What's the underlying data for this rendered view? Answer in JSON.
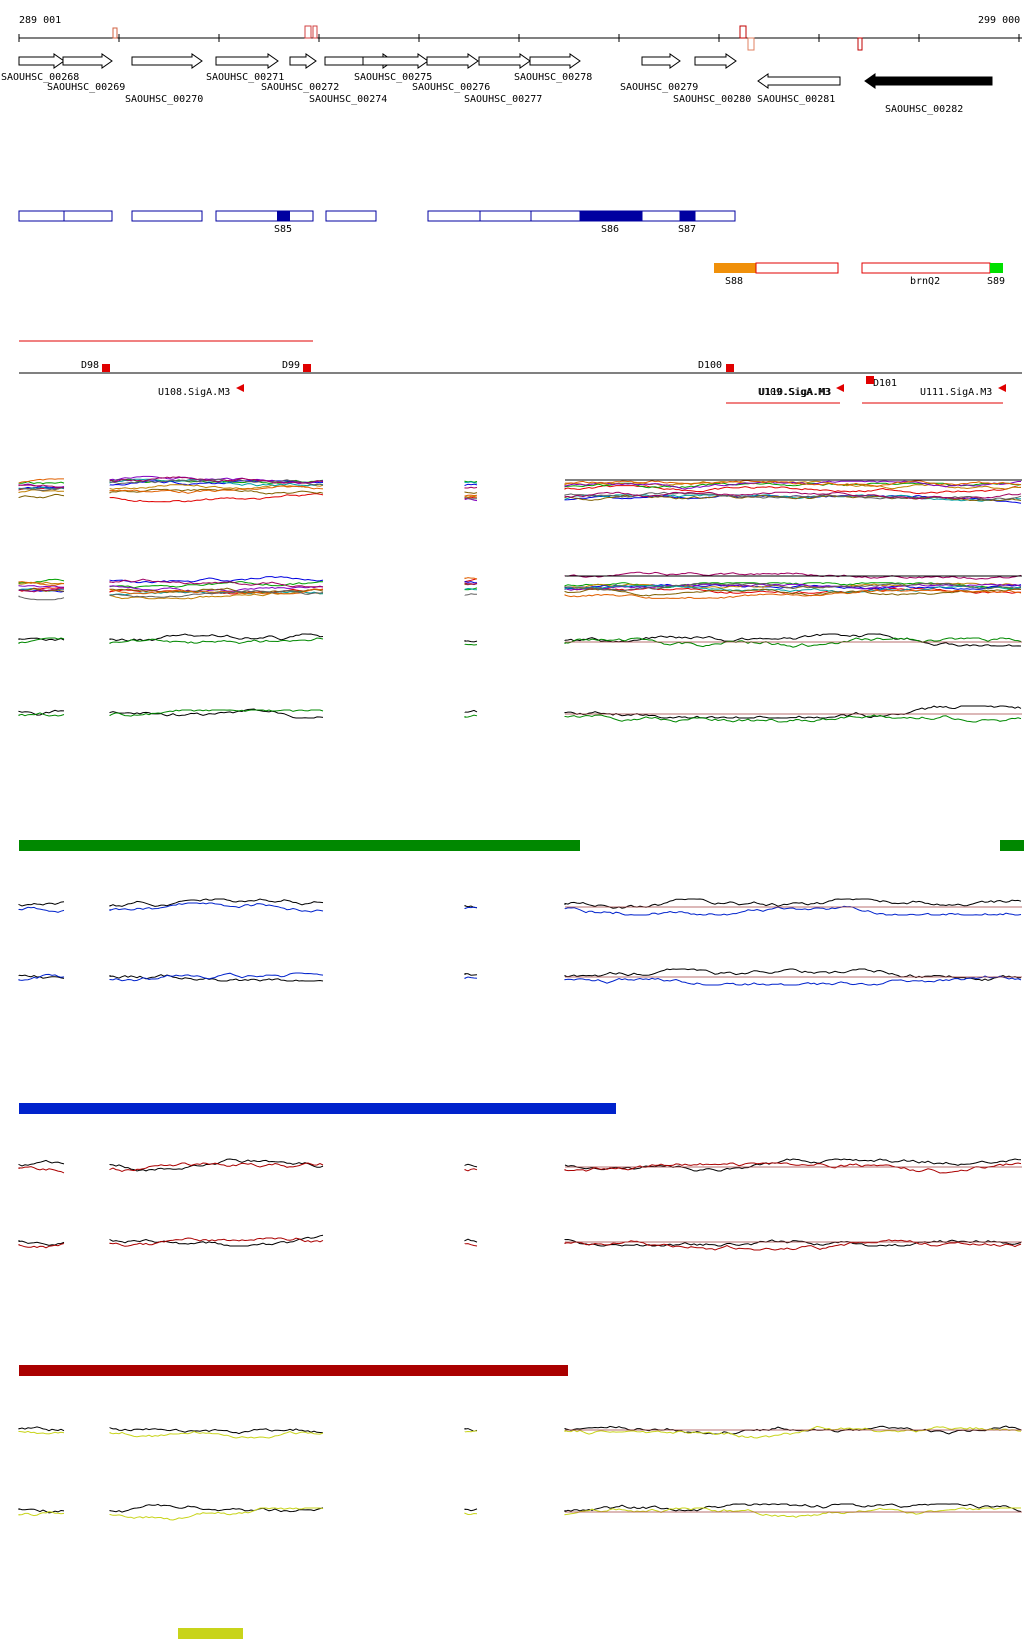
{
  "coords": {
    "start": "289 001",
    "end": "299 000"
  },
  "genes": [
    {
      "name": "SAOUHSC_00268",
      "strand": "+",
      "fill": "#ffffff"
    },
    {
      "name": "SAOUHSC_00269",
      "strand": "+",
      "fill": "#ffffff"
    },
    {
      "name": "SAOUHSC_00270",
      "strand": "+",
      "fill": "#ffffff"
    },
    {
      "name": "SAOUHSC_00271",
      "strand": "+",
      "fill": "#ffffff"
    },
    {
      "name": "SAOUHSC_00272",
      "strand": "+",
      "fill": "#ffffff"
    },
    {
      "name": "SAOUHSC_00274",
      "strand": "+",
      "fill": "#ffffff"
    },
    {
      "name": "SAOUHSC_00275",
      "strand": "+",
      "fill": "#ffffff"
    },
    {
      "name": "SAOUHSC_00276",
      "strand": "+",
      "fill": "#ffffff"
    },
    {
      "name": "SAOUHSC_00277",
      "strand": "+",
      "fill": "#ffffff"
    },
    {
      "name": "SAOUHSC_00278",
      "strand": "+",
      "fill": "#ffffff"
    },
    {
      "name": "SAOUHSC_00279",
      "strand": "+",
      "fill": "#ffffff"
    },
    {
      "name": "SAOUHSC_00280",
      "strand": "+",
      "fill": "#ffffff"
    },
    {
      "name": "SAOUHSC_00281",
      "strand": "-",
      "fill": "#ffffff"
    },
    {
      "name": "SAOUHSC_00282",
      "strand": "-",
      "fill": "#000000"
    }
  ],
  "segments_blue": [
    "S85",
    "S86",
    "S87"
  ],
  "segments_red": [
    "S88",
    "brnQ2",
    "S89"
  ],
  "segment_colors": {
    "blue": "#0000a0",
    "orange": "#f0900a",
    "green": "#00e000",
    "red": "#e00000"
  },
  "downstream_sites": [
    "D98",
    "D99",
    "D100",
    "D101"
  ],
  "upstream_sites": [
    "U108.SigA.M3",
    "U109.SigA.M3",
    "U110.SigA.M3",
    "U111.SigA.M3"
  ],
  "condition_colors": {
    "green": "#008800",
    "blue": "#0022cc",
    "red": "#aa0000",
    "yellow": "#c8d41a"
  },
  "tracks": [
    "multi-upper",
    "multi-lower",
    "green-upper",
    "green-lower",
    "blue-upper",
    "blue-lower",
    "red-upper",
    "red-lower",
    "yellow-upper",
    "yellow-lower"
  ]
}
